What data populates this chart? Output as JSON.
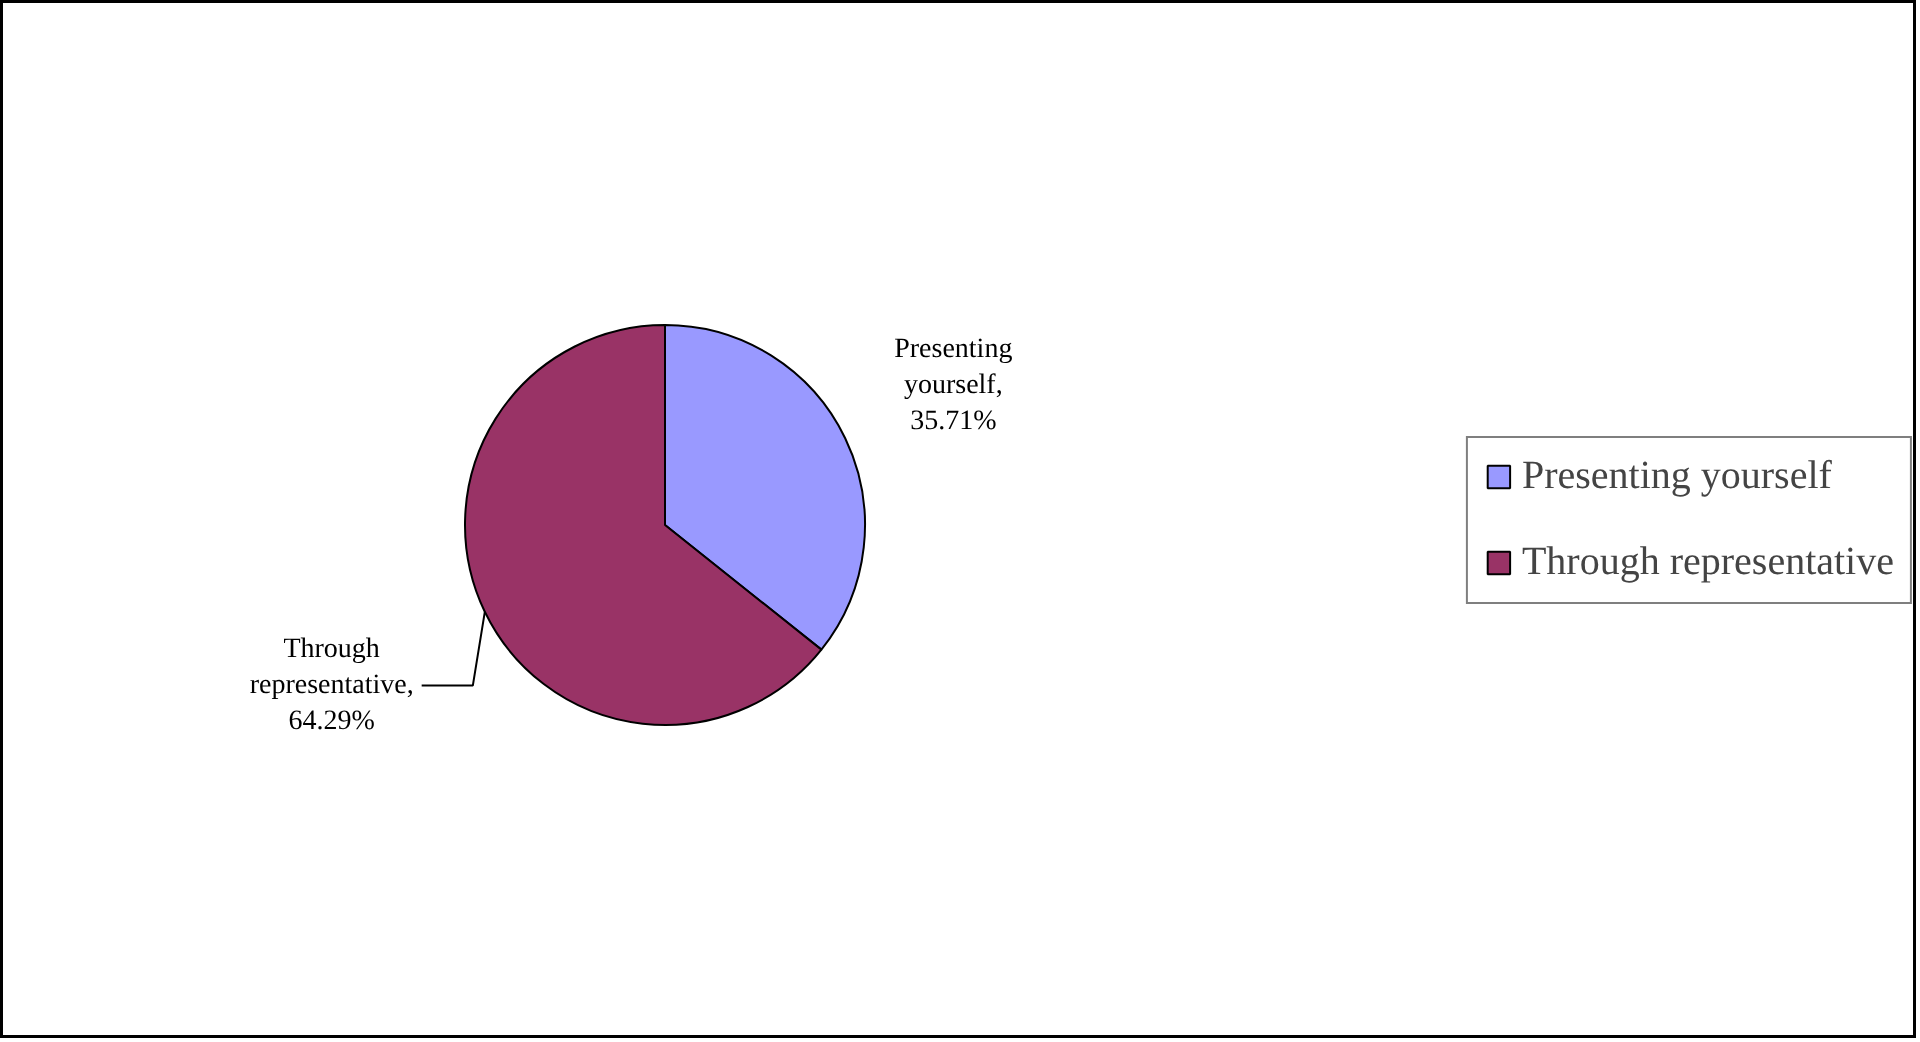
{
  "chart_data": {
    "type": "pie",
    "categories": [
      "Presenting yourself",
      "Through representative"
    ],
    "values": [
      35.71,
      64.29
    ],
    "colors": [
      "#9999ff",
      "#993366"
    ],
    "value_labels": [
      "Presenting yourself, 35.71%",
      "Through representative, 64.29%"
    ],
    "legend": "right"
  }
}
